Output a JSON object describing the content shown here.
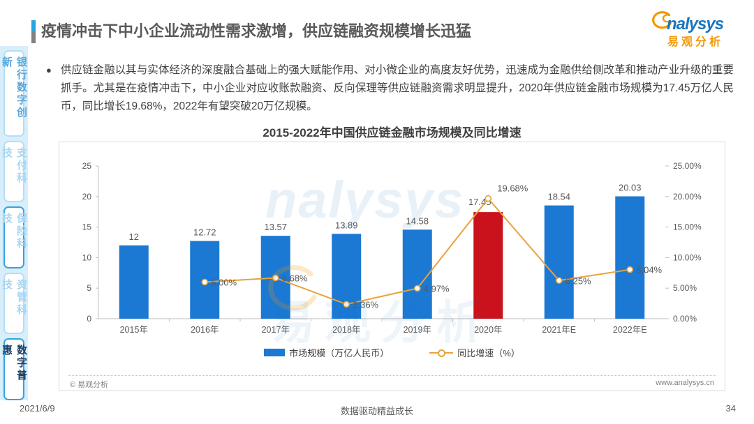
{
  "header": {
    "title": "疫情冲击下中小企业流动性需求激增，供应链融资规模增长迅猛",
    "logo": {
      "en": "nalysys",
      "cn": "易观分析"
    }
  },
  "sidebar": {
    "tabs": [
      {
        "label": "银行数字创新",
        "emphasis": "medium"
      },
      {
        "label": "支付科技",
        "emphasis": "light"
      },
      {
        "label": "保险科技",
        "emphasis": "outlined"
      },
      {
        "label": "资管科技",
        "emphasis": "light"
      },
      {
        "label": "数字普惠",
        "emphasis": "dark"
      }
    ]
  },
  "body": {
    "bullet": "●",
    "bullet_text": "供应链金融以其与实体经济的深度融合基础上的强大赋能作用、对小微企业的高度友好优势，迅速成为金融供给侧改革和推动产业升级的重要抓手。尤其是在疫情冲击下，中小企业对应收账款融资、反向保理等供应链融资需求明显提升，2020年供应链金融市场规模为17.45万亿人民币，同比增长19.68%，2022年有望突破20万亿规模。"
  },
  "chart_card": {
    "source_left": "© 易观分析",
    "source_right": "www.analysys.cn",
    "watermark_en": "nalysys",
    "watermark_cn": "易观分析"
  },
  "chart_data": {
    "type": "bar",
    "subtype": "bar+line combo",
    "title": "2015-2022年中国供应链金融市场规模及同比增速",
    "categories": [
      "2015年",
      "2016年",
      "2017年",
      "2018年",
      "2019年",
      "2020年",
      "2021年E",
      "2022年E"
    ],
    "series": [
      {
        "name": "市场规模（万亿人民币）",
        "type": "bar",
        "values": [
          12,
          12.72,
          13.57,
          13.89,
          14.58,
          17.45,
          18.54,
          20.03
        ],
        "labels": [
          "12",
          "12.72",
          "13.57",
          "13.89",
          "14.58",
          "17.45",
          "18.54",
          "20.03"
        ]
      },
      {
        "name": "同比增速（%）",
        "type": "line",
        "values": [
          null,
          6.0,
          6.68,
          2.36,
          4.97,
          19.68,
          6.25,
          8.04
        ],
        "labels": [
          null,
          "6.00%",
          "6.68%",
          "2.36%",
          "4.97%",
          "19.68%",
          "6.25%",
          "8.04%"
        ]
      }
    ],
    "left_axis": {
      "min": 0,
      "max": 25,
      "ticks": [
        "0",
        "5",
        "10",
        "15",
        "20",
        "25"
      ]
    },
    "right_axis": {
      "min": 0,
      "max": 25,
      "ticks": [
        "0.00%",
        "5.00%",
        "10.00%",
        "15.00%",
        "20.00%",
        "25.00%"
      ]
    },
    "bar_color": "#1b79d4",
    "bar_highlight_color": "#c9121b",
    "highlight_index": 5,
    "line_color": "#e9a23b",
    "axis_color": "#bfbfbf",
    "tick_label_color": "#595959",
    "grid": false,
    "legend_position": "bottom"
  },
  "footer": {
    "date": "2021/6/9",
    "slogan": "数据驱动精益成长",
    "page_number": "34"
  }
}
